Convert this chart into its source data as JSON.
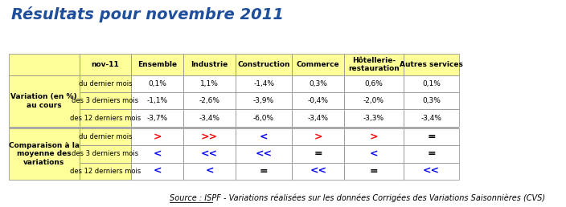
{
  "title": "Résultats pour novembre 2011",
  "title_color": "#1F4E9C",
  "title_fontsize": 14,
  "col_headers": [
    "nov-11",
    "Ensemble",
    "Industrie",
    "Construction",
    "Commerce",
    "Hôtellerie-\nrestauration",
    "Autres services"
  ],
  "row_group1_label": "Variation (en %)\nau cours",
  "row_group2_label": "Comparaison à la\nmoyenne des\nvariations",
  "row_labels": [
    "du dernier mois",
    "des 3 derniers mois",
    "des 12 derniers mois"
  ],
  "data_top": [
    [
      "0,1%",
      "1,1%",
      "-1,4%",
      "0,3%",
      "0,6%",
      "0,1%"
    ],
    [
      "-1,1%",
      "-2,6%",
      "-3,9%",
      "-0,4%",
      "-2,0%",
      "0,3%"
    ],
    [
      "-3,7%",
      "-3,4%",
      "-6,0%",
      "-3,4%",
      "-3,3%",
      "-3,4%"
    ]
  ],
  "data_bottom": [
    [
      ">",
      ">>",
      "<",
      ">",
      ">",
      "="
    ],
    [
      "<",
      "<<",
      "<<",
      "=",
      "<",
      "="
    ],
    [
      "<",
      "<",
      "=",
      "<<",
      "=",
      "<<"
    ]
  ],
  "bottom_colors": [
    [
      "red",
      "red",
      "blue",
      "red",
      "red",
      "black"
    ],
    [
      "blue",
      "blue",
      "blue",
      "black",
      "blue",
      "black"
    ],
    [
      "blue",
      "blue",
      "black",
      "blue",
      "black",
      "blue"
    ]
  ],
  "header_bg": "#FFFF99",
  "data_bg": "#FFFFFF",
  "group_label_bg": "#FFFF99",
  "sep_color": "#AAAAAA",
  "border_color": "#888888",
  "source_text": "Source : ISPF - Variations réalisées sur les données Corrigées des Variations Saisonnières (CVS)",
  "source_fontsize": 7,
  "figsize": [
    7.04,
    2.58
  ],
  "dpi": 100
}
